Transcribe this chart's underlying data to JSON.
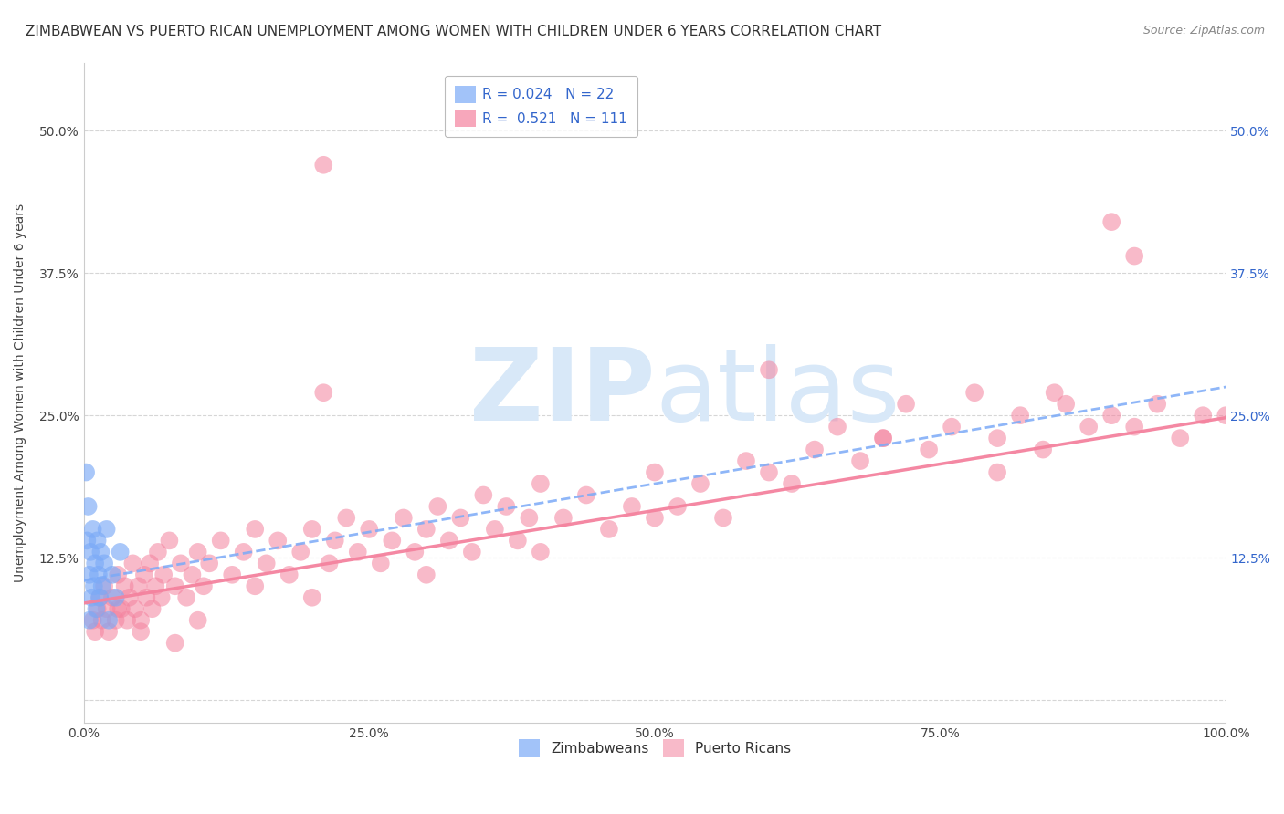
{
  "title": "ZIMBABWEAN VS PUERTO RICAN UNEMPLOYMENT AMONG WOMEN WITH CHILDREN UNDER 6 YEARS CORRELATION CHART",
  "source": "Source: ZipAtlas.com",
  "ylabel": "Unemployment Among Women with Children Under 6 years",
  "xlim": [
    0,
    1.0
  ],
  "ylim": [
    -0.02,
    0.56
  ],
  "xticks": [
    0.0,
    0.25,
    0.5,
    0.75,
    1.0
  ],
  "xticklabels": [
    "0.0%",
    "25.0%",
    "50.0%",
    "75.0%",
    "100.0%"
  ],
  "yticks": [
    0.0,
    0.125,
    0.25,
    0.375,
    0.5
  ],
  "yticklabels": [
    "",
    "12.5%",
    "25.0%",
    "37.5%",
    "50.0%"
  ],
  "zimbabwe_color": "#7baaf7",
  "puertorico_color": "#f4829e",
  "zimbabwe_R": 0.024,
  "zimbabwe_N": 22,
  "puertorico_R": 0.521,
  "puertorico_N": 111,
  "background_color": "#ffffff",
  "grid_color": "#cccccc",
  "legend_label_zim": "Zimbabweans",
  "legend_label_pr": "Puerto Ricans",
  "title_fontsize": 11,
  "axis_label_fontsize": 10,
  "tick_fontsize": 10,
  "legend_fontsize": 11,
  "zim_x": [
    0.002,
    0.003,
    0.004,
    0.005,
    0.005,
    0.006,
    0.007,
    0.008,
    0.009,
    0.01,
    0.011,
    0.012,
    0.013,
    0.014,
    0.015,
    0.016,
    0.018,
    0.02,
    0.022,
    0.025,
    0.028,
    0.032
  ],
  "zim_y": [
    0.2,
    0.14,
    0.17,
    0.11,
    0.07,
    0.13,
    0.09,
    0.15,
    0.1,
    0.12,
    0.08,
    0.14,
    0.11,
    0.09,
    0.13,
    0.1,
    0.12,
    0.15,
    0.07,
    0.11,
    0.09,
    0.13
  ],
  "pr_x": [
    0.008,
    0.01,
    0.012,
    0.014,
    0.016,
    0.018,
    0.02,
    0.022,
    0.025,
    0.028,
    0.03,
    0.033,
    0.036,
    0.038,
    0.04,
    0.043,
    0.045,
    0.048,
    0.05,
    0.053,
    0.055,
    0.058,
    0.06,
    0.063,
    0.065,
    0.068,
    0.07,
    0.075,
    0.08,
    0.085,
    0.09,
    0.095,
    0.1,
    0.105,
    0.11,
    0.12,
    0.13,
    0.14,
    0.15,
    0.16,
    0.17,
    0.18,
    0.19,
    0.2,
    0.21,
    0.215,
    0.22,
    0.23,
    0.24,
    0.25,
    0.26,
    0.27,
    0.28,
    0.29,
    0.3,
    0.31,
    0.32,
    0.33,
    0.34,
    0.35,
    0.36,
    0.37,
    0.38,
    0.39,
    0.4,
    0.42,
    0.44,
    0.46,
    0.48,
    0.5,
    0.52,
    0.54,
    0.56,
    0.58,
    0.6,
    0.62,
    0.64,
    0.66,
    0.68,
    0.7,
    0.72,
    0.74,
    0.76,
    0.78,
    0.8,
    0.82,
    0.84,
    0.86,
    0.88,
    0.9,
    0.92,
    0.94,
    0.96,
    0.98,
    1.0,
    0.21,
    0.03,
    0.08,
    0.15,
    0.05,
    0.9,
    0.85,
    0.92,
    0.1,
    0.2,
    0.3,
    0.6,
    0.7,
    0.8,
    0.4,
    0.5
  ],
  "pr_y": [
    0.07,
    0.06,
    0.08,
    0.09,
    0.07,
    0.1,
    0.08,
    0.06,
    0.09,
    0.07,
    0.11,
    0.08,
    0.1,
    0.07,
    0.09,
    0.12,
    0.08,
    0.1,
    0.07,
    0.11,
    0.09,
    0.12,
    0.08,
    0.1,
    0.13,
    0.09,
    0.11,
    0.14,
    0.1,
    0.12,
    0.09,
    0.11,
    0.13,
    0.1,
    0.12,
    0.14,
    0.11,
    0.13,
    0.15,
    0.12,
    0.14,
    0.11,
    0.13,
    0.15,
    0.47,
    0.12,
    0.14,
    0.16,
    0.13,
    0.15,
    0.12,
    0.14,
    0.16,
    0.13,
    0.15,
    0.17,
    0.14,
    0.16,
    0.13,
    0.18,
    0.15,
    0.17,
    0.14,
    0.16,
    0.19,
    0.16,
    0.18,
    0.15,
    0.17,
    0.2,
    0.17,
    0.19,
    0.16,
    0.21,
    0.29,
    0.19,
    0.22,
    0.24,
    0.21,
    0.23,
    0.26,
    0.22,
    0.24,
    0.27,
    0.23,
    0.25,
    0.22,
    0.26,
    0.24,
    0.25,
    0.24,
    0.26,
    0.23,
    0.25,
    0.25,
    0.27,
    0.08,
    0.05,
    0.1,
    0.06,
    0.42,
    0.27,
    0.39,
    0.07,
    0.09,
    0.11,
    0.2,
    0.23,
    0.2,
    0.13,
    0.16
  ],
  "zim_trend_x0": 0.0,
  "zim_trend_y0": 0.105,
  "zim_trend_x1": 1.0,
  "zim_trend_y1": 0.275,
  "pr_trend_x0": 0.0,
  "pr_trend_y0": 0.085,
  "pr_trend_x1": 1.0,
  "pr_trend_y1": 0.248
}
